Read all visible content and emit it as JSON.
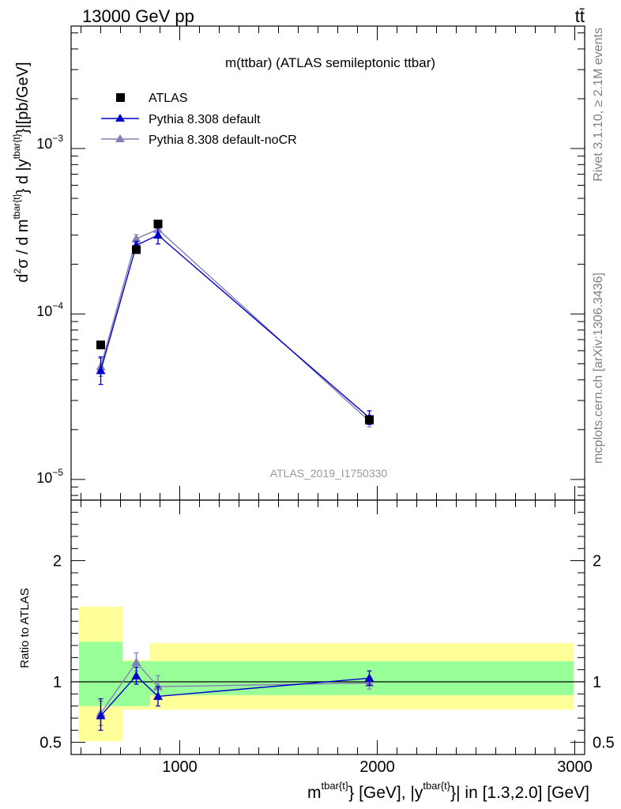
{
  "header": {
    "left": "13000 GeV pp",
    "right": "tt̄"
  },
  "side_labels": {
    "rivet": "Rivet 3.1.10, ≥ 2.1M events",
    "mcplots": "mcplots.cern.ch [arXiv:1306.3436]"
  },
  "watermark": "ATLAS_2019_I1750330",
  "colors": {
    "atlas": "#000000",
    "default": "#0000cc",
    "nocr": "#8080b3",
    "band_inner": "#99ff99",
    "band_outer": "#ffff99"
  },
  "chart_data": [
    {
      "type": "scatter",
      "title": "m(ttbar) (ATLAS semileptonic ttbar)",
      "ylabel": "d²σ / d m^{tbar{t}} d |y^{tbar{t}}|[pb/GeV]",
      "ylabel_parts": {
        "d2": "d",
        "sup2": "2",
        "sigma": "σ / d m",
        "sup_m": "tbar{t}",
        "mid": "} d |y",
        "sup_y": "tbar{t}",
        "end": "}|[pb/GeV]"
      },
      "yscale": "log",
      "ylim": [
        7.5e-06,
        0.0055
      ],
      "xlim": [
        450,
        3050
      ],
      "ytick_labels": [
        {
          "base": "10",
          "exp": "−5",
          "value": 1e-05
        },
        {
          "base": "10",
          "exp": "−4",
          "value": 0.0001
        },
        {
          "base": "10",
          "exp": "−3",
          "value": 0.001
        }
      ],
      "legend_position": "top-left",
      "series": [
        {
          "name": "ATLAS",
          "marker": "square",
          "x": [
            600,
            780,
            890,
            1960
          ],
          "y": [
            6.5e-05,
            0.000245,
            0.00035,
            2.3e-05
          ],
          "xerr": [
            [
              600,
              600
            ],
            [
              780,
              780
            ],
            [
              890,
              890
            ],
            [
              1960,
              1960
            ]
          ]
        },
        {
          "name": "Pythia 8.308 default",
          "marker": "triangle",
          "x": [
            600,
            780,
            890,
            1960
          ],
          "y": [
            4.55e-05,
            0.00026,
            0.0003,
            2.36e-05
          ],
          "yerr_low": [
            3.75e-05,
            0.000245,
            0.000265,
            2.15e-05
          ],
          "yerr_high": [
            5.5e-05,
            0.000275,
            0.000335,
            2.6e-05
          ]
        },
        {
          "name": "Pythia 8.308 default-noCR",
          "marker": "triangle",
          "x": [
            600,
            780,
            890,
            1960
          ],
          "y": [
            4.8e-05,
            0.000285,
            0.000325,
            2.25e-05
          ],
          "yerr_low": [
            4.2e-05,
            0.000268,
            0.0003,
            2.08e-05
          ],
          "yerr_high": [
            5.4e-05,
            0.000302,
            0.00035,
            2.43e-05
          ]
        }
      ]
    },
    {
      "type": "scatter",
      "ylabel": "Ratio to ATLAS",
      "xlabel": "m^{tbar{t}} [GeV], |y^{tbar{t}}| in [1.3,2.0] [GeV]",
      "xlabel_parts": {
        "m": "m",
        "sup_m": "tbar{t}",
        "mid": "} [GeV], |y",
        "sup_y": "tbar{t}",
        "end": "}| in [1.3,2.0] [GeV]"
      },
      "ylim": [
        0.4,
        2.5
      ],
      "xlim": [
        450,
        3050
      ],
      "yticks": [
        0.5,
        1,
        2
      ],
      "ytick_labels": [
        "0.5",
        "1",
        "2"
      ],
      "xticks": [
        1000,
        2000,
        3000
      ],
      "xtick_labels": [
        "1000",
        "2000",
        "3000"
      ],
      "reference_line": 1,
      "bands": [
        {
          "x": [
            490,
            710
          ],
          "outer": [
            0.51,
            1.62
          ],
          "inner": [
            0.8,
            1.33
          ]
        },
        {
          "x": [
            710,
            850
          ],
          "outer": [
            0.77,
            1.18
          ],
          "inner": [
            0.8,
            1.17
          ]
        },
        {
          "x": [
            850,
            2995
          ],
          "outer": [
            0.77,
            1.32
          ],
          "inner": [
            0.89,
            1.17
          ]
        }
      ],
      "series": [
        {
          "name": "Pythia 8.308 default",
          "x": [
            600,
            780,
            890,
            1960
          ],
          "y": [
            0.72,
            1.05,
            0.88,
            1.03
          ],
          "yerr_low": [
            0.6,
            0.98,
            0.8,
            0.97
          ],
          "yerr_high": [
            0.86,
            1.12,
            0.96,
            1.09
          ]
        },
        {
          "name": "Pythia 8.308 default-noCR",
          "x": [
            600,
            780,
            890,
            1960
          ],
          "y": [
            0.74,
            1.16,
            0.96,
            0.99
          ],
          "yerr_low": [
            0.64,
            1.09,
            0.87,
            0.94
          ],
          "yerr_high": [
            0.84,
            1.24,
            1.05,
            1.04
          ]
        }
      ]
    }
  ]
}
